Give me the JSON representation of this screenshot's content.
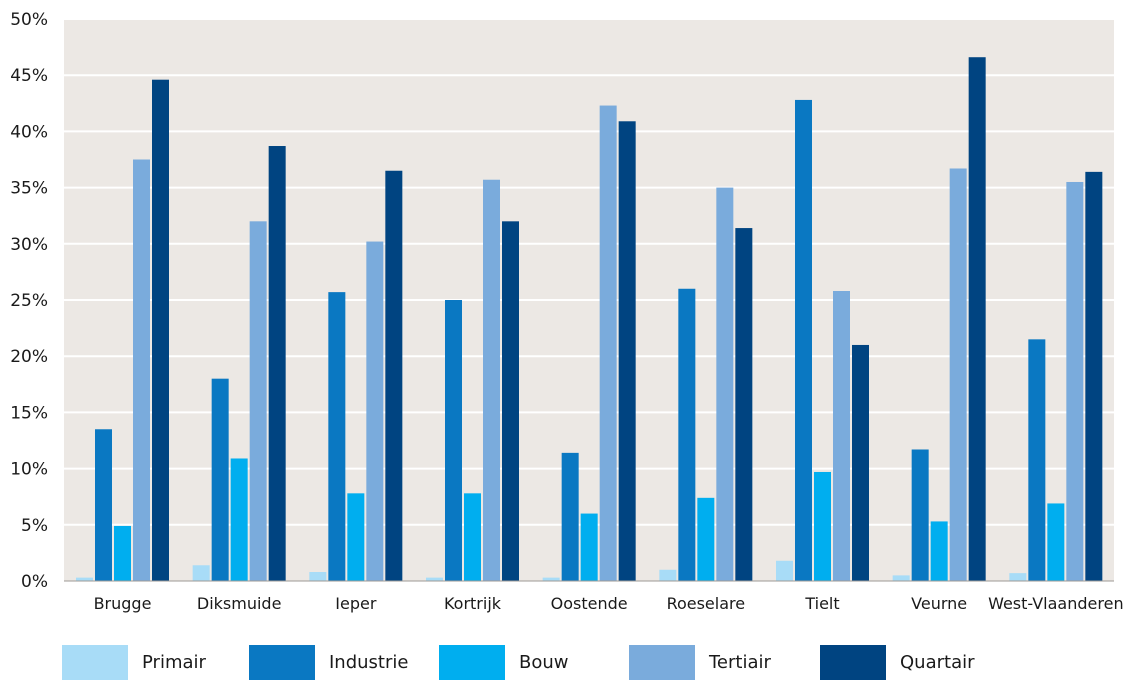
{
  "chart_data": {
    "type": "bar",
    "categories": [
      "Brugge",
      "Diksmuide",
      "Ieper",
      "Kortrijk",
      "Oostende",
      "Roeselare",
      "Tielt",
      "Veurne",
      "West-Vlaanderen"
    ],
    "series": [
      {
        "name": "Primair",
        "color": "#a8dcf7",
        "values": [
          0.3,
          1.4,
          0.8,
          0.3,
          0.3,
          1.0,
          1.8,
          0.5,
          0.7
        ]
      },
      {
        "name": "Industrie",
        "color": "#0a78c2",
        "values": [
          13.5,
          18.0,
          25.7,
          25.0,
          11.4,
          26.0,
          42.8,
          11.7,
          21.5
        ]
      },
      {
        "name": "Bouw",
        "color": "#00aeef",
        "values": [
          4.9,
          10.9,
          7.8,
          7.8,
          6.0,
          7.4,
          9.7,
          5.3,
          6.9
        ]
      },
      {
        "name": "Tertiair",
        "color": "#7aabdc",
        "values": [
          37.5,
          32.0,
          30.2,
          35.7,
          42.3,
          35.0,
          25.8,
          36.7,
          35.5
        ]
      },
      {
        "name": "Quartair",
        "color": "#004481",
        "values": [
          44.6,
          38.7,
          36.5,
          32.0,
          40.9,
          31.4,
          21.0,
          46.6,
          36.4
        ]
      }
    ],
    "ylim": [
      0,
      50
    ],
    "y_ticks": [
      "0%",
      "5%",
      "10%",
      "15%",
      "20%",
      "25%",
      "30%",
      "35%",
      "40%",
      "45%",
      "50%"
    ],
    "grid": true,
    "legend_position": "bottom",
    "background": "#ece8e4"
  }
}
